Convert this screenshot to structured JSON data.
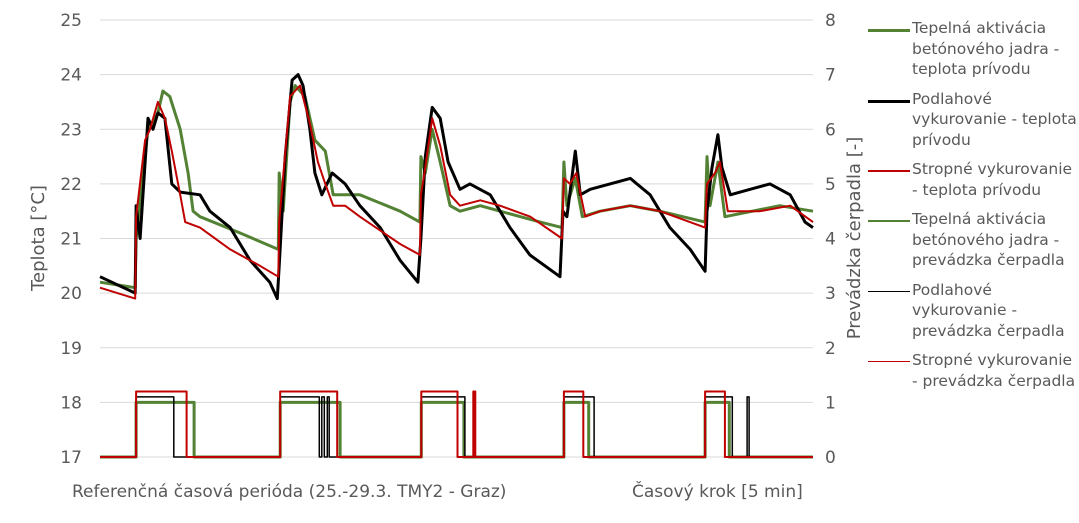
{
  "chart_data": {
    "type": "line",
    "title": "",
    "xlabel": "Časový krok [5 min]",
    "x_caption": "Referenčná časová perióda (25.-29.3. TMY2 - Graz)",
    "ylabel": "Teplota [°C]",
    "y2label": "Prevádzka čerpadla [-]",
    "ylim": [
      17,
      25
    ],
    "y2lim": [
      0,
      8
    ],
    "yticks": [
      17,
      18,
      19,
      20,
      21,
      22,
      23,
      24,
      25
    ],
    "y2ticks": [
      0,
      1,
      2,
      3,
      4,
      5,
      6,
      7,
      8
    ],
    "xlim": [
      0,
      1440
    ],
    "grid": true,
    "legend_position": "right",
    "series": [
      {
        "name": "Tepelná aktivácia betónového jadra - teplota prívodu",
        "axis": "left",
        "color": "#548235",
        "width": 3,
        "points": [
          [
            0,
            20.2
          ],
          [
            71,
            20.1
          ],
          [
            73,
            21.0
          ],
          [
            97,
            23.0
          ],
          [
            117,
            23.3
          ],
          [
            127,
            23.7
          ],
          [
            141,
            23.6
          ],
          [
            162,
            23.0
          ],
          [
            178,
            22.2
          ],
          [
            188,
            21.5
          ],
          [
            202,
            21.4
          ],
          [
            283,
            21.1
          ],
          [
            360,
            20.8
          ],
          [
            362,
            22.2
          ],
          [
            370,
            21.5
          ],
          [
            384,
            23.5
          ],
          [
            394,
            23.8
          ],
          [
            414,
            23.6
          ],
          [
            434,
            22.8
          ],
          [
            455,
            22.6
          ],
          [
            471,
            21.8
          ],
          [
            525,
            21.8
          ],
          [
            606,
            21.5
          ],
          [
            646,
            21.3
          ],
          [
            648,
            22.5
          ],
          [
            657,
            22.2
          ],
          [
            671,
            23.0
          ],
          [
            687,
            22.4
          ],
          [
            707,
            21.6
          ],
          [
            727,
            21.5
          ],
          [
            768,
            21.6
          ],
          [
            808,
            21.5
          ],
          [
            889,
            21.3
          ],
          [
            933,
            21.2
          ],
          [
            937,
            22.4
          ],
          [
            943,
            21.6
          ],
          [
            960,
            22.1
          ],
          [
            974,
            21.4
          ],
          [
            1010,
            21.5
          ],
          [
            1071,
            21.6
          ],
          [
            1131,
            21.5
          ],
          [
            1222,
            21.3
          ],
          [
            1226,
            22.5
          ],
          [
            1232,
            21.6
          ],
          [
            1248,
            22.4
          ],
          [
            1262,
            21.4
          ],
          [
            1373,
            21.6
          ],
          [
            1440,
            21.5
          ]
        ]
      },
      {
        "name": "Podlahové vykurovanie - teplota prívodu",
        "axis": "left",
        "color": "#000000",
        "width": 3,
        "points": [
          [
            0,
            20.3
          ],
          [
            71,
            20.0
          ],
          [
            73,
            21.6
          ],
          [
            81,
            21.0
          ],
          [
            97,
            23.2
          ],
          [
            107,
            23.0
          ],
          [
            117,
            23.3
          ],
          [
            131,
            23.2
          ],
          [
            145,
            22.0
          ],
          [
            162,
            21.85
          ],
          [
            202,
            21.8
          ],
          [
            222,
            21.5
          ],
          [
            263,
            21.2
          ],
          [
            303,
            20.6
          ],
          [
            343,
            20.2
          ],
          [
            358,
            19.9
          ],
          [
            362,
            20.5
          ],
          [
            374,
            22.5
          ],
          [
            388,
            23.9
          ],
          [
            400,
            24.0
          ],
          [
            410,
            23.8
          ],
          [
            424,
            23.0
          ],
          [
            434,
            22.2
          ],
          [
            448,
            21.8
          ],
          [
            469,
            22.2
          ],
          [
            495,
            22.0
          ],
          [
            525,
            21.6
          ],
          [
            566,
            21.2
          ],
          [
            606,
            20.6
          ],
          [
            642,
            20.2
          ],
          [
            648,
            21.0
          ],
          [
            657,
            22.5
          ],
          [
            671,
            23.4
          ],
          [
            687,
            23.2
          ],
          [
            703,
            22.4
          ],
          [
            727,
            21.9
          ],
          [
            747,
            22.0
          ],
          [
            788,
            21.8
          ],
          [
            828,
            21.2
          ],
          [
            868,
            20.7
          ],
          [
            929,
            20.3
          ],
          [
            935,
            21.5
          ],
          [
            943,
            21.4
          ],
          [
            960,
            22.6
          ],
          [
            970,
            21.8
          ],
          [
            990,
            21.9
          ],
          [
            1030,
            22.0
          ],
          [
            1071,
            22.1
          ],
          [
            1111,
            21.8
          ],
          [
            1151,
            21.2
          ],
          [
            1192,
            20.8
          ],
          [
            1222,
            20.4
          ],
          [
            1226,
            21.5
          ],
          [
            1236,
            22.3
          ],
          [
            1248,
            22.9
          ],
          [
            1256,
            22.3
          ],
          [
            1273,
            21.8
          ],
          [
            1313,
            21.9
          ],
          [
            1353,
            22.0
          ],
          [
            1394,
            21.8
          ],
          [
            1424,
            21.3
          ],
          [
            1440,
            21.2
          ]
        ]
      },
      {
        "name": "Stropné vykurovanie - teplota prívodu",
        "axis": "left",
        "color": "#c00000",
        "width": 2,
        "points": [
          [
            0,
            20.1
          ],
          [
            71,
            19.9
          ],
          [
            73,
            21.4
          ],
          [
            91,
            22.8
          ],
          [
            101,
            23.0
          ],
          [
            117,
            23.5
          ],
          [
            131,
            23.2
          ],
          [
            145,
            22.6
          ],
          [
            162,
            21.8
          ],
          [
            172,
            21.3
          ],
          [
            202,
            21.2
          ],
          [
            263,
            20.8
          ],
          [
            323,
            20.5
          ],
          [
            360,
            20.3
          ],
          [
            362,
            21.3
          ],
          [
            384,
            23.6
          ],
          [
            404,
            23.8
          ],
          [
            424,
            23.1
          ],
          [
            440,
            22.4
          ],
          [
            455,
            22.0
          ],
          [
            471,
            21.6
          ],
          [
            495,
            21.6
          ],
          [
            525,
            21.4
          ],
          [
            606,
            20.9
          ],
          [
            646,
            20.7
          ],
          [
            648,
            21.8
          ],
          [
            657,
            22.3
          ],
          [
            671,
            23.2
          ],
          [
            687,
            22.7
          ],
          [
            707,
            21.8
          ],
          [
            727,
            21.6
          ],
          [
            768,
            21.7
          ],
          [
            808,
            21.6
          ],
          [
            869,
            21.4
          ],
          [
            933,
            21.0
          ],
          [
            937,
            22.1
          ],
          [
            949,
            22.0
          ],
          [
            962,
            22.2
          ],
          [
            980,
            21.4
          ],
          [
            1010,
            21.5
          ],
          [
            1071,
            21.6
          ],
          [
            1131,
            21.5
          ],
          [
            1222,
            21.2
          ],
          [
            1226,
            22.0
          ],
          [
            1242,
            22.2
          ],
          [
            1252,
            22.4
          ],
          [
            1268,
            21.5
          ],
          [
            1333,
            21.5
          ],
          [
            1394,
            21.6
          ],
          [
            1440,
            21.3
          ]
        ]
      },
      {
        "name": "Tepelná aktivácia betónového jadra - prevádzka čerpadla",
        "axis": "right",
        "color": "#548235",
        "width": 3,
        "on_level": 1.0,
        "on_intervals": [
          [
            73,
            190
          ],
          [
            364,
            485
          ],
          [
            649,
            735
          ],
          [
            937,
            987
          ],
          [
            1222,
            1271
          ]
        ]
      },
      {
        "name": "Podlahové vykurovanie - prevádzka čerpadla",
        "axis": "right",
        "color": "#000000",
        "width": 1.5,
        "on_level": 1.1,
        "on_intervals": [
          [
            73,
            149
          ],
          [
            364,
            443
          ],
          [
            448,
            453
          ],
          [
            459,
            463
          ],
          [
            649,
            737
          ],
          [
            937,
            998
          ],
          [
            1222,
            1277
          ],
          [
            1307,
            1311
          ]
        ]
      },
      {
        "name": "Stropné vykurovanie - prevádzka čerpadla",
        "axis": "right",
        "color": "#c00000",
        "width": 2,
        "on_level": 1.2,
        "on_intervals": [
          [
            73,
            175
          ],
          [
            364,
            479
          ],
          [
            649,
            722
          ],
          [
            754,
            758
          ],
          [
            937,
            976
          ],
          [
            1222,
            1262
          ]
        ]
      }
    ]
  },
  "legend": {
    "items": [
      {
        "label": "Tepelná aktivácia betónového jadra - teplota prívodu",
        "color": "#548235",
        "thickness": 3
      },
      {
        "label": "Podlahové vykurovanie - teplota prívodu",
        "color": "#000000",
        "thickness": 3
      },
      {
        "label": "Stropné vykurovanie - teplota prívodu",
        "color": "#c00000",
        "thickness": 2
      },
      {
        "label": "Tepelná aktivácia betónového jadra - prevádzka čerpadla",
        "color": "#548235",
        "thickness": 2
      },
      {
        "label": "Podlahové vykurovanie - prevádzka čerpadla",
        "color": "#000000",
        "thickness": 1
      },
      {
        "label": "Stropné vykurovanie - prevádzka čerpadla",
        "color": "#c00000",
        "thickness": 1
      }
    ]
  },
  "captions": {
    "left": "Referenčná časová perióda (25.-29.3. TMY2 - Graz)",
    "right": "Časový krok [5 min]"
  },
  "colors": {
    "grid": "#d9d9d9",
    "text": "#595959"
  }
}
